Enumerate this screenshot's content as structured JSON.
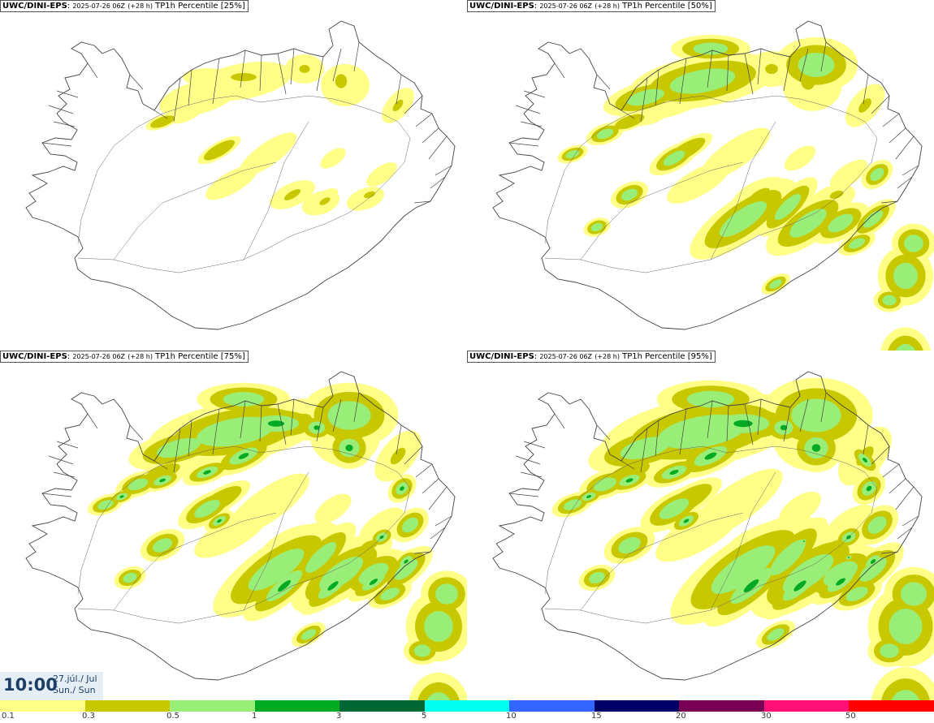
{
  "panels": [
    {
      "source": "UWC/DINI-EPS",
      "run": "2025-07-26 06Z",
      "lead": "(+28 h)",
      "field": "TP1h Percentile",
      "pct": "[25%]",
      "level": 1
    },
    {
      "source": "UWC/DINI-EPS",
      "run": "2025-07-26 06Z",
      "lead": "(+28 h)",
      "field": "TP1h Percentile",
      "pct": "[50%]",
      "level": 2
    },
    {
      "source": "UWC/DINI-EPS",
      "run": "2025-07-26 06Z",
      "lead": "(+28 h)",
      "field": "TP1h Percentile",
      "pct": "[75%]",
      "level": 3
    },
    {
      "source": "UWC/DINI-EPS",
      "run": "2025-07-26 06Z",
      "lead": "(+28 h)",
      "field": "TP1h Percentile",
      "pct": "[95%]",
      "level": 4
    }
  ],
  "time": {
    "clock": "10:00",
    "date_line1": "27.júl./ Jul",
    "date_line2": "Sun./ Sun"
  },
  "legend": {
    "colors": [
      "#ffff88",
      "#c8c800",
      "#99ee77",
      "#00aa22",
      "#006633",
      "#00ffee",
      "#3366ff",
      "#000066",
      "#770055",
      "#ff1177",
      "#ff0000"
    ],
    "labels": [
      "0.1",
      "0.3",
      "0.5",
      "1",
      "3",
      "5",
      "10",
      "15",
      "20",
      "30",
      "50"
    ]
  }
}
